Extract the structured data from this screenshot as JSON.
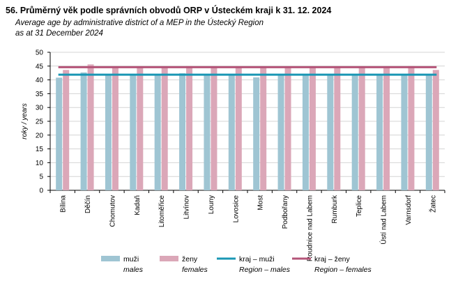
{
  "header": {
    "title": "56. Průměrný věk podle správních obvodů ORP v Ústeckém kraji k 31. 12. 2024",
    "subtitle_line1": "Average age by administrative district of a MEP in the Ústecký Region",
    "subtitle_line2": "as at 31 December 2024"
  },
  "chart_data": {
    "type": "bar",
    "title": "56. Průměrný věk podle správních obvodů ORP v Ústeckém kraji k 31. 12. 2024",
    "xlabel": "",
    "ylabel": "roky / years",
    "ylim": [
      0,
      50
    ],
    "yticks": [
      0,
      5,
      10,
      15,
      20,
      25,
      30,
      35,
      40,
      45,
      50
    ],
    "grid": true,
    "legend_position": "bottom",
    "categories": [
      "Bílina",
      "Děčín",
      "Chomutov",
      "Kadaň",
      "Litoměřice",
      "Litvínov",
      "Louny",
      "Lovosice",
      "Most",
      "Podbořany",
      "Roudnice nad Labem",
      "Rumburk",
      "Teplice",
      "Ústí nad Labem",
      "Varnsdorf",
      "Žatec"
    ],
    "series": [
      {
        "name": "muži",
        "name_en": "males",
        "kind": "bar",
        "color": "#9fc5d3",
        "values": [
          40.8,
          42.7,
          41.6,
          42.0,
          41.9,
          42.4,
          42.0,
          41.7,
          40.9,
          41.6,
          41.8,
          41.9,
          41.9,
          41.6,
          42.0,
          41.6
        ]
      },
      {
        "name": "ženy",
        "name_en": "females",
        "kind": "bar",
        "color": "#dba7b8",
        "values": [
          43.6,
          45.6,
          44.5,
          44.5,
          44.6,
          45.0,
          44.6,
          44.4,
          44.5,
          44.4,
          44.6,
          44.7,
          44.7,
          44.5,
          45.0,
          43.6
        ]
      },
      {
        "name": "kraj – muži",
        "name_en": "Region – males",
        "kind": "line",
        "color": "#1a97b4",
        "value": 41.9
      },
      {
        "name": "kraj – ženy",
        "name_en": "Region – females",
        "kind": "line",
        "color": "#b45478",
        "value": 44.6
      }
    ]
  }
}
